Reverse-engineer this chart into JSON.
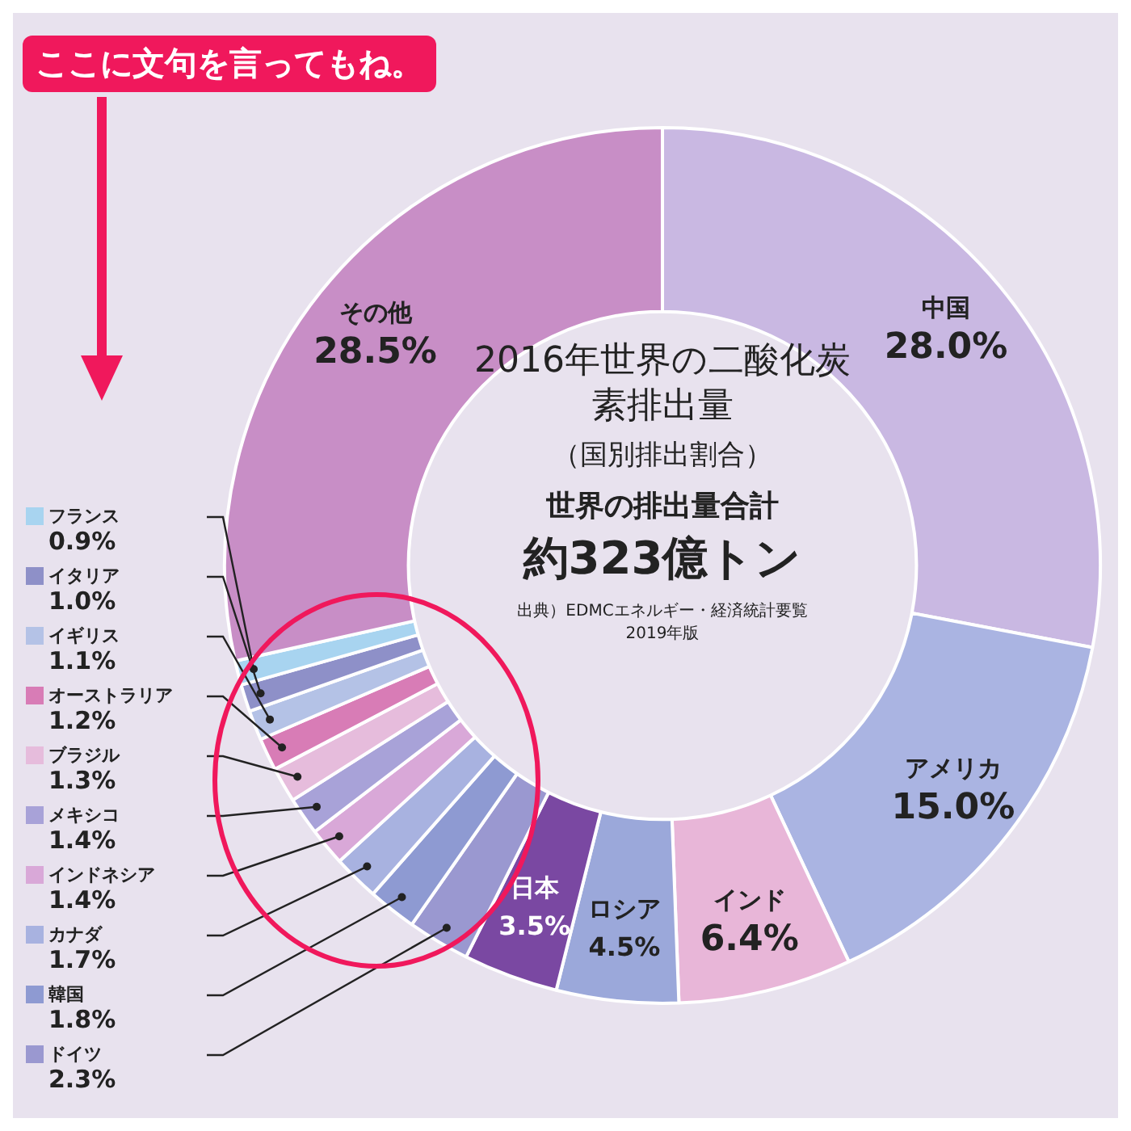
{
  "chart_data": {
    "type": "donut",
    "title": "2016年世界の二酸化炭素排出量",
    "legend": "left",
    "subtitle": "（国別排出割合）",
    "annotations": [
      "世界の排出量合計",
      "約323億トン",
      "出典）EDMCエネルギー・経済統計要覧",
      "2019年版",
      "ここに文句を言ってもね。"
    ],
    "categories": [
      "中国",
      "アメリカ",
      "インド",
      "ロシア",
      "日本",
      "ドイツ",
      "韓国",
      "カナダ",
      "インドネシア",
      "メキシコ",
      "ブラジル",
      "オーストラリア",
      "イギリス",
      "イタリア",
      "フランス",
      "その他"
    ],
    "values": [
      28.0,
      15.0,
      6.4,
      4.5,
      3.5,
      2.3,
      1.8,
      1.7,
      1.4,
      1.4,
      1.3,
      1.2,
      1.1,
      1.0,
      0.9,
      28.5
    ],
    "value_labels": [
      "28.0%",
      "15.0%",
      "6.4%",
      "4.5%",
      "3.5%",
      "2.3%",
      "1.8%",
      "1.7%",
      "1.4%",
      "1.4%",
      "1.3%",
      "1.2%",
      "1.1%",
      "1.0%",
      "0.9%",
      "28.5%"
    ],
    "colors": [
      "#c9b8e2",
      "#aab4e2",
      "#e8b6d8",
      "#9ba8da",
      "#7a48a2",
      "#9a98d0",
      "#8e9ad2",
      "#a8b2e0",
      "#d9a8d8",
      "#a8a2d8",
      "#e6bcdc",
      "#d87cb6",
      "#b4c2e6",
      "#8e90c8",
      "#a8d4f0",
      "#c88ec6"
    ]
  }
}
